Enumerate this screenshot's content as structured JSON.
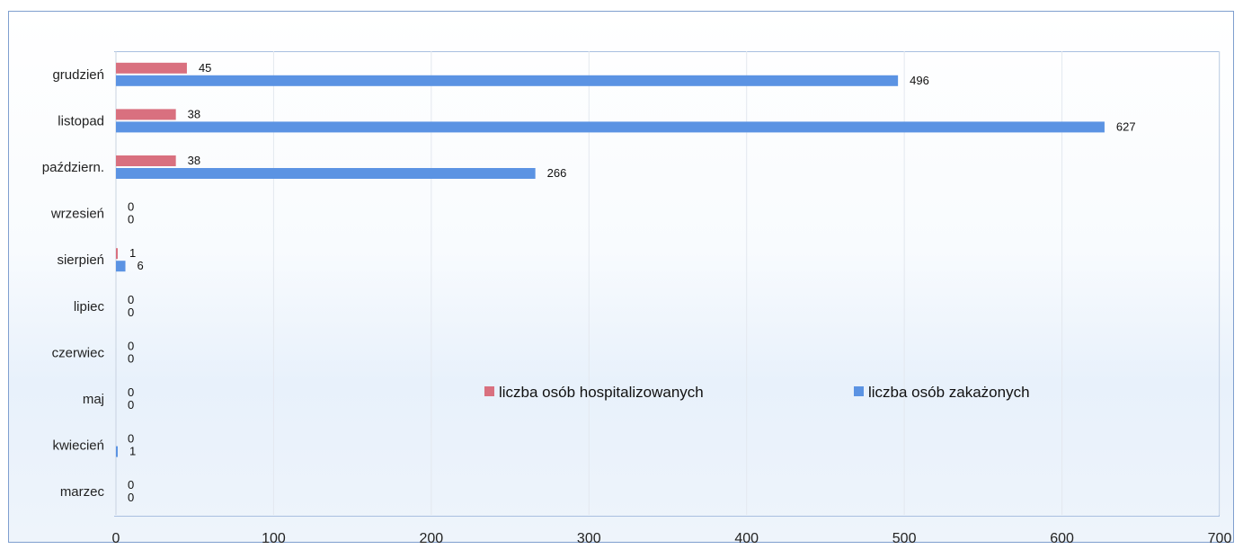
{
  "chart_data": {
    "type": "bar",
    "orientation": "horizontal",
    "categories": [
      "marzec",
      "kwiecień",
      "maj",
      "czerwiec",
      "lipiec",
      "sierpień",
      "wrzesień",
      "październ.",
      "listopad",
      "grudzień"
    ],
    "series": [
      {
        "name": "liczba osób hospitalizowanych",
        "color": "#d9707f",
        "values": [
          0,
          0,
          0,
          0,
          0,
          1,
          0,
          38,
          38,
          45
        ]
      },
      {
        "name": "liczba osób zakażonych",
        "color": "#5b93e3",
        "values": [
          0,
          1,
          0,
          0,
          0,
          6,
          0,
          266,
          627,
          496
        ]
      }
    ],
    "xlim": [
      0,
      700
    ],
    "xticks": [
      0,
      100,
      200,
      300,
      400,
      500,
      600,
      700
    ],
    "title": "",
    "xlabel": "",
    "ylabel": "",
    "grid": true,
    "legend": "center"
  }
}
